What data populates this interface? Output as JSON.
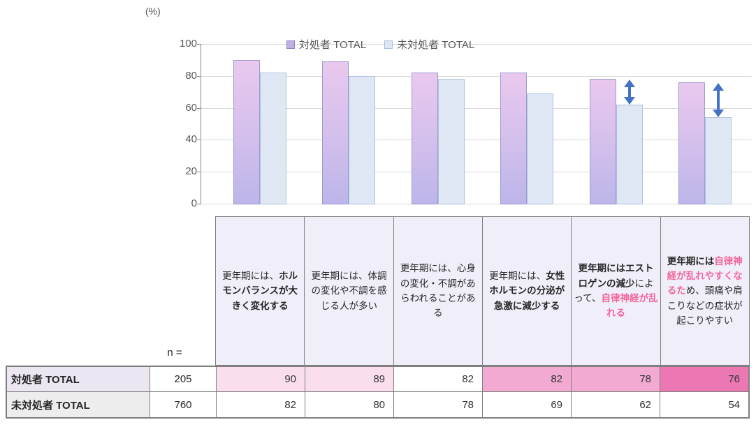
{
  "chart_data": {
    "type": "bar",
    "title": "",
    "unit_label": "(%)",
    "ylim": [
      0,
      100
    ],
    "yticks": [
      0,
      20,
      40,
      60,
      80,
      100
    ],
    "grid": true,
    "legend_position": "top-center",
    "categories": [
      "更年期には、ホルモンバランスが大きく変化する",
      "更年期には、体調の変化や不調を感じる人が多い",
      "更年期には、心身の変化・不調があらわれることがある",
      "更年期には、女性ホルモンの分泌が急激に減少する",
      "更年期にはエストロゲンの減少によって、自律神経が乱れる",
      "更年期には自律神経が乱れやすくなるため、頭痛や肩こりなどの症状が起こりやすい"
    ],
    "series": [
      {
        "name": "対処者 TOTAL",
        "values": [
          90,
          89,
          82,
          82,
          78,
          76
        ],
        "legend_fill": "#c1aee2",
        "legend_border": "#8b84c2"
      },
      {
        "name": "未対処者 TOTAL",
        "values": [
          82,
          80,
          78,
          69,
          62,
          54
        ],
        "legend_fill": "#dce6f4",
        "legend_border": "#a9bfdb"
      }
    ],
    "significance_arrows": {
      "color": "#4472c4",
      "pair_indexes": [
        4,
        5
      ]
    }
  },
  "table": {
    "n_label": "n =",
    "header_cells": [
      {
        "segments": [
          {
            "text": "更年期には、",
            "bold": false,
            "pink": false
          },
          {
            "text": "ホルモンバランスが大きく変化する",
            "bold": true,
            "pink": false
          }
        ]
      },
      {
        "segments": [
          {
            "text": "更年期には、体調の変化や不調を感じる人が多い",
            "bold": false,
            "pink": false
          }
        ]
      },
      {
        "segments": [
          {
            "text": "更年期には、心身の変化・不調があらわれることがある",
            "bold": false,
            "pink": false
          }
        ]
      },
      {
        "segments": [
          {
            "text": "更年期には、",
            "bold": false,
            "pink": false
          },
          {
            "text": "女性ホルモンの分泌が急激に減少する",
            "bold": true,
            "pink": false
          }
        ]
      },
      {
        "segments": [
          {
            "text": "更年期にはエストロゲンの減少",
            "bold": true,
            "pink": false
          },
          {
            "text": "によって、",
            "bold": false,
            "pink": false
          },
          {
            "text": "自律神経が乱れる",
            "bold": true,
            "pink": true
          }
        ]
      },
      {
        "segments": [
          {
            "text": "更年期には",
            "bold": true,
            "pink": false
          },
          {
            "text": "自律神経が乱れやすくなるた",
            "bold": true,
            "pink": true
          },
          {
            "text": "め、頭痛や肩こりなどの症状が起こりやすい",
            "bold": false,
            "pink": false
          }
        ]
      }
    ],
    "rows": [
      {
        "label": "対処者 TOTAL",
        "n": "205",
        "values": [
          "90",
          "89",
          "82",
          "82",
          "78",
          "76"
        ],
        "cell_bg": [
          "#fadeee",
          "#fadeee",
          "#ffffff",
          "#f3aad2",
          "#f3aad2",
          "#ec78b3"
        ],
        "label_bg": "#ece6f3"
      },
      {
        "label": "未対処者 TOTAL",
        "n": "760",
        "values": [
          "82",
          "80",
          "78",
          "69",
          "62",
          "54"
        ],
        "cell_bg": [
          "#ffffff",
          "#ffffff",
          "#ffffff",
          "#ffffff",
          "#ffffff",
          "#ffffff"
        ],
        "label_bg": "#ededed"
      }
    ]
  },
  "colors": {
    "pink_text": "#f2679f",
    "gridline": "#d9d9d9",
    "axis": "#898989",
    "tick_label": "#595959",
    "header_bg": "#f0eff9",
    "table_border": "#7f7f7f",
    "arrow": "#4472c4"
  }
}
